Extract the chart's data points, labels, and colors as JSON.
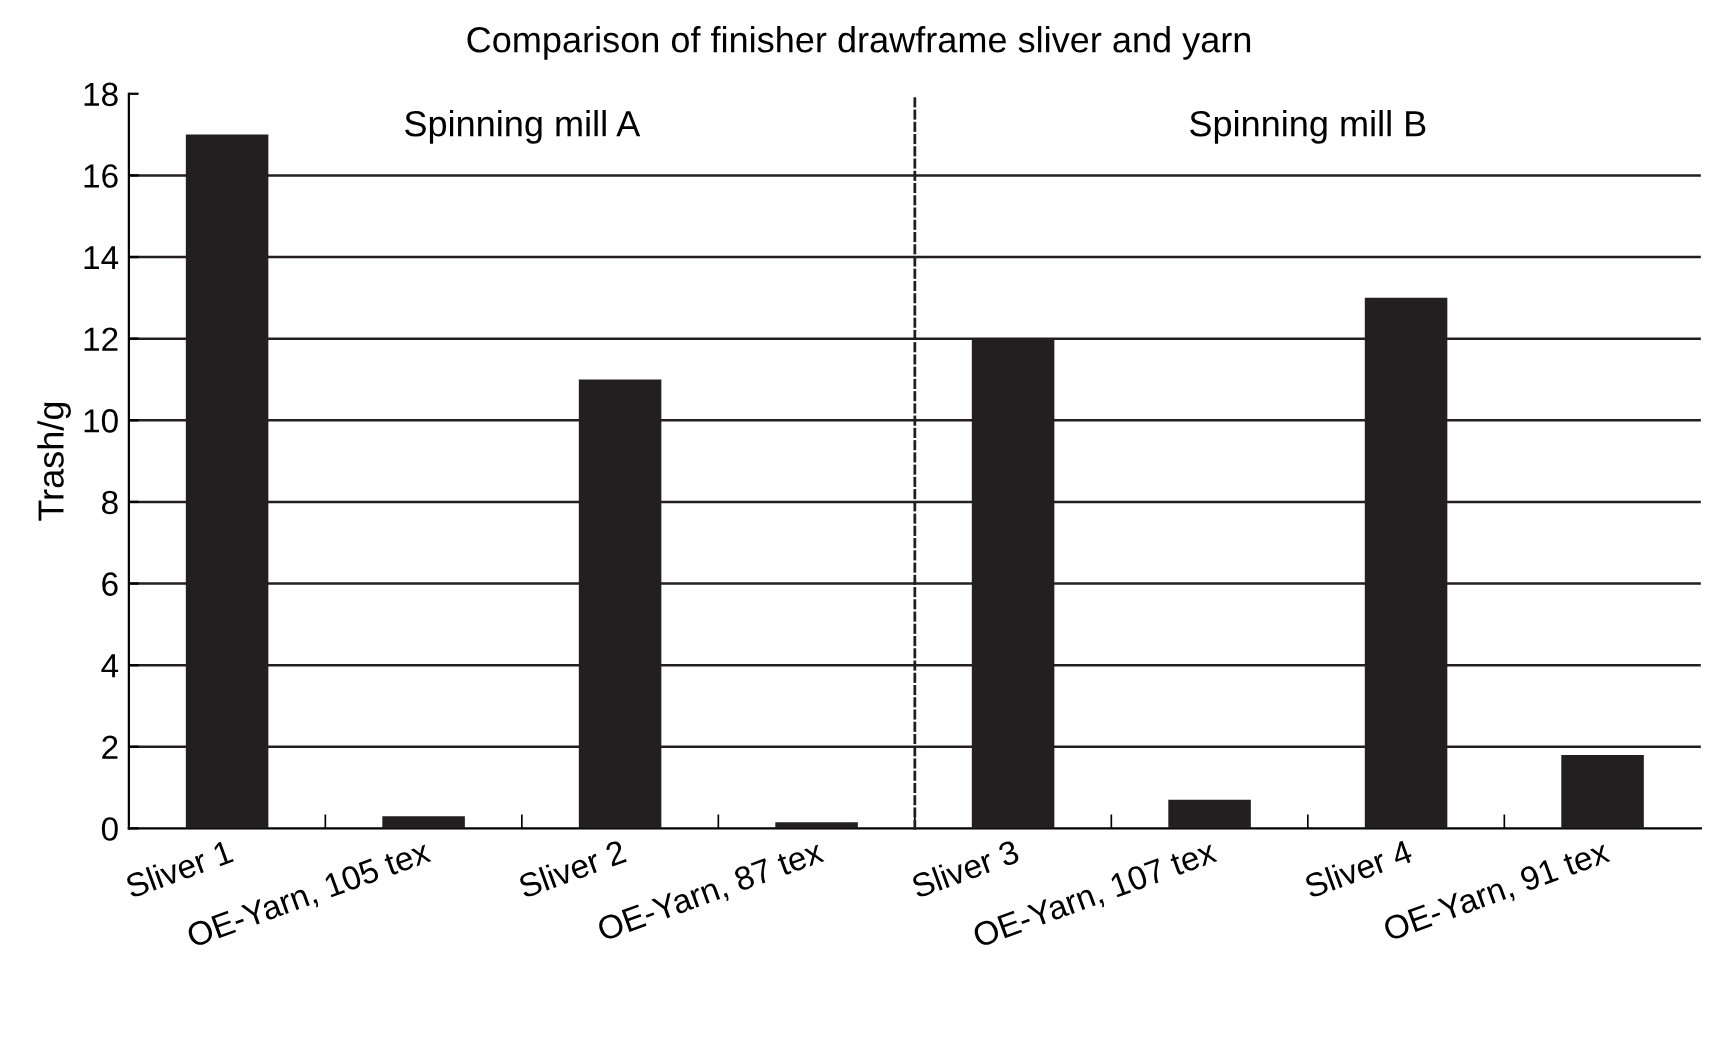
{
  "chart_data": {
    "type": "bar",
    "title": "Comparison of finisher drawframe sliver and yarn",
    "ylabel": "Trash/g",
    "categories": [
      "Sliver 1",
      "OE-Yarn, 105 tex",
      "Sliver 2",
      "OE-Yarn, 87 tex",
      "Sliver 3",
      "OE-Yarn, 107 tex",
      "Sliver 4",
      "OE-Yarn, 91 tex"
    ],
    "values": [
      17,
      0.3,
      11,
      0.15,
      12,
      0.7,
      13,
      1.8
    ],
    "color": "#231f20",
    "ylim": [
      0,
      18
    ],
    "yticks": [
      0,
      2,
      4,
      6,
      8,
      10,
      12,
      14,
      16,
      18
    ],
    "grid": "y",
    "annotations": [
      "Spinning mill A",
      "Spinning mill B"
    ]
  }
}
